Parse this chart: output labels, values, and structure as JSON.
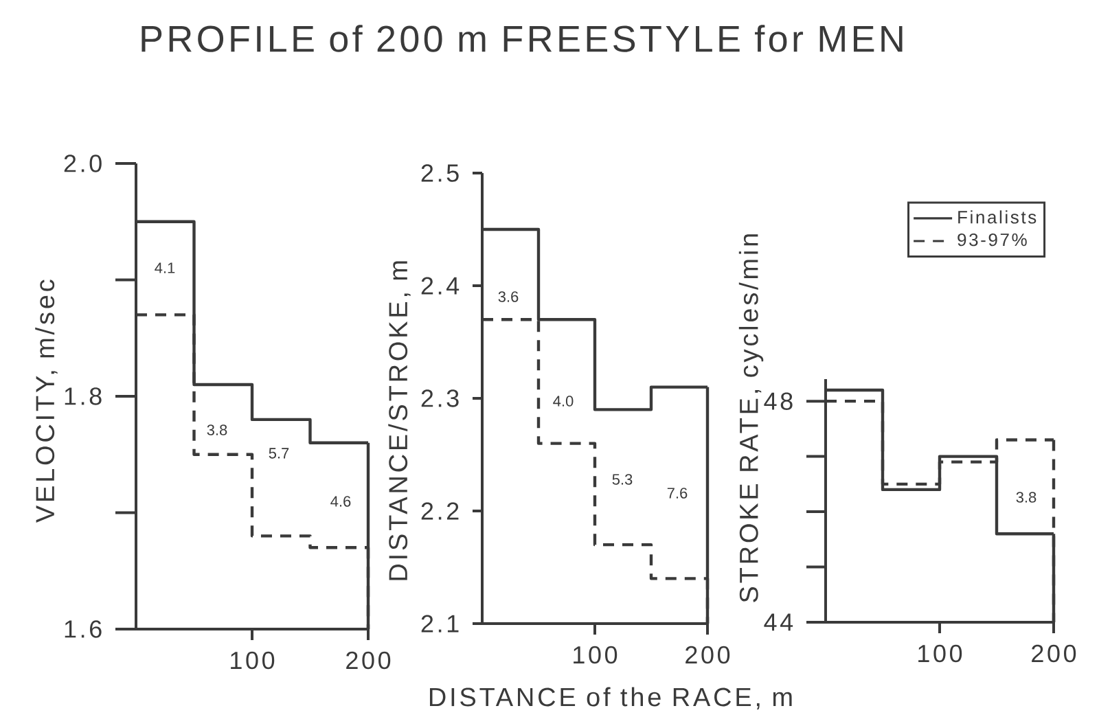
{
  "chart_data": [
    {
      "type": "step",
      "ylabel": "VELOCITY, m/sec",
      "x": [
        0,
        50,
        100,
        150,
        200
      ],
      "xlim": [
        0,
        200
      ],
      "xticks": [
        100,
        200
      ],
      "ylim": [
        1.6,
        2.0
      ],
      "yticks": [
        1.6,
        {
          "value": 1.7,
          "label": null
        },
        1.8,
        {
          "value": 1.9,
          "label": null
        },
        {
          "value": 2,
          "label": "2.0"
        }
      ],
      "series": [
        {
          "color": "#3a3a3a",
          "line_style": "solid",
          "values": [
            1.95,
            1.81,
            1.78,
            1.76,
            1.76
          ]
        },
        {
          "color": "#3a3a3a",
          "line_style": "dashed",
          "values": [
            1.87,
            1.75,
            1.68,
            1.67,
            1.67
          ]
        }
      ],
      "annotations": [
        "4.1",
        "3.8",
        "5.7",
        "4.6"
      ]
    },
    {
      "type": "step",
      "title": "PROFILE of 200 m FREESTYLE for MEN",
      "xlabel": "DISTANCE of the RACE, m",
      "ylabel": "DISTANCE/STROKE, m",
      "x": [
        0,
        50,
        100,
        150,
        200
      ],
      "xlim": [
        0,
        200
      ],
      "xticks": [
        100,
        200
      ],
      "ylim": [
        2.1,
        2.5
      ],
      "yticks": [
        2.1,
        2.2,
        2.3,
        2.4,
        2.5
      ],
      "series": [
        {
          "color": "#3a3a3a",
          "line_style": "solid",
          "values": [
            2.45,
            2.37,
            2.29,
            2.31,
            2.31
          ]
        },
        {
          "color": "#3a3a3a",
          "line_style": "dashed",
          "values": [
            2.37,
            2.26,
            2.17,
            2.14,
            2.14
          ]
        }
      ],
      "annotations": [
        "3.6",
        "4.0",
        "5.3",
        "7.6"
      ]
    },
    {
      "type": "step",
      "ylabel": "STROKE RATE, cycles/min",
      "x": [
        0,
        50,
        100,
        150,
        200
      ],
      "xlim": [
        0,
        200
      ],
      "xticks": [
        100,
        200
      ],
      "ylim": [
        44,
        48.4
      ],
      "yticks": [
        44,
        {
          "value": 45,
          "label": null
        },
        {
          "value": 46,
          "label": null
        },
        {
          "value": 47,
          "label": null
        },
        48
      ],
      "legend": "top right",
      "series": [
        {
          "name": "Finalists",
          "color": "#3a3a3a",
          "line_style": "solid",
          "values": [
            48.2,
            46.4,
            47.0,
            45.6,
            45.6
          ]
        },
        {
          "name": "93-97%",
          "color": "#3a3a3a",
          "line_style": "dashed",
          "values": [
            48.0,
            46.5,
            46.9,
            47.3,
            47.3
          ]
        }
      ],
      "annotations": [
        "3.8"
      ]
    }
  ]
}
